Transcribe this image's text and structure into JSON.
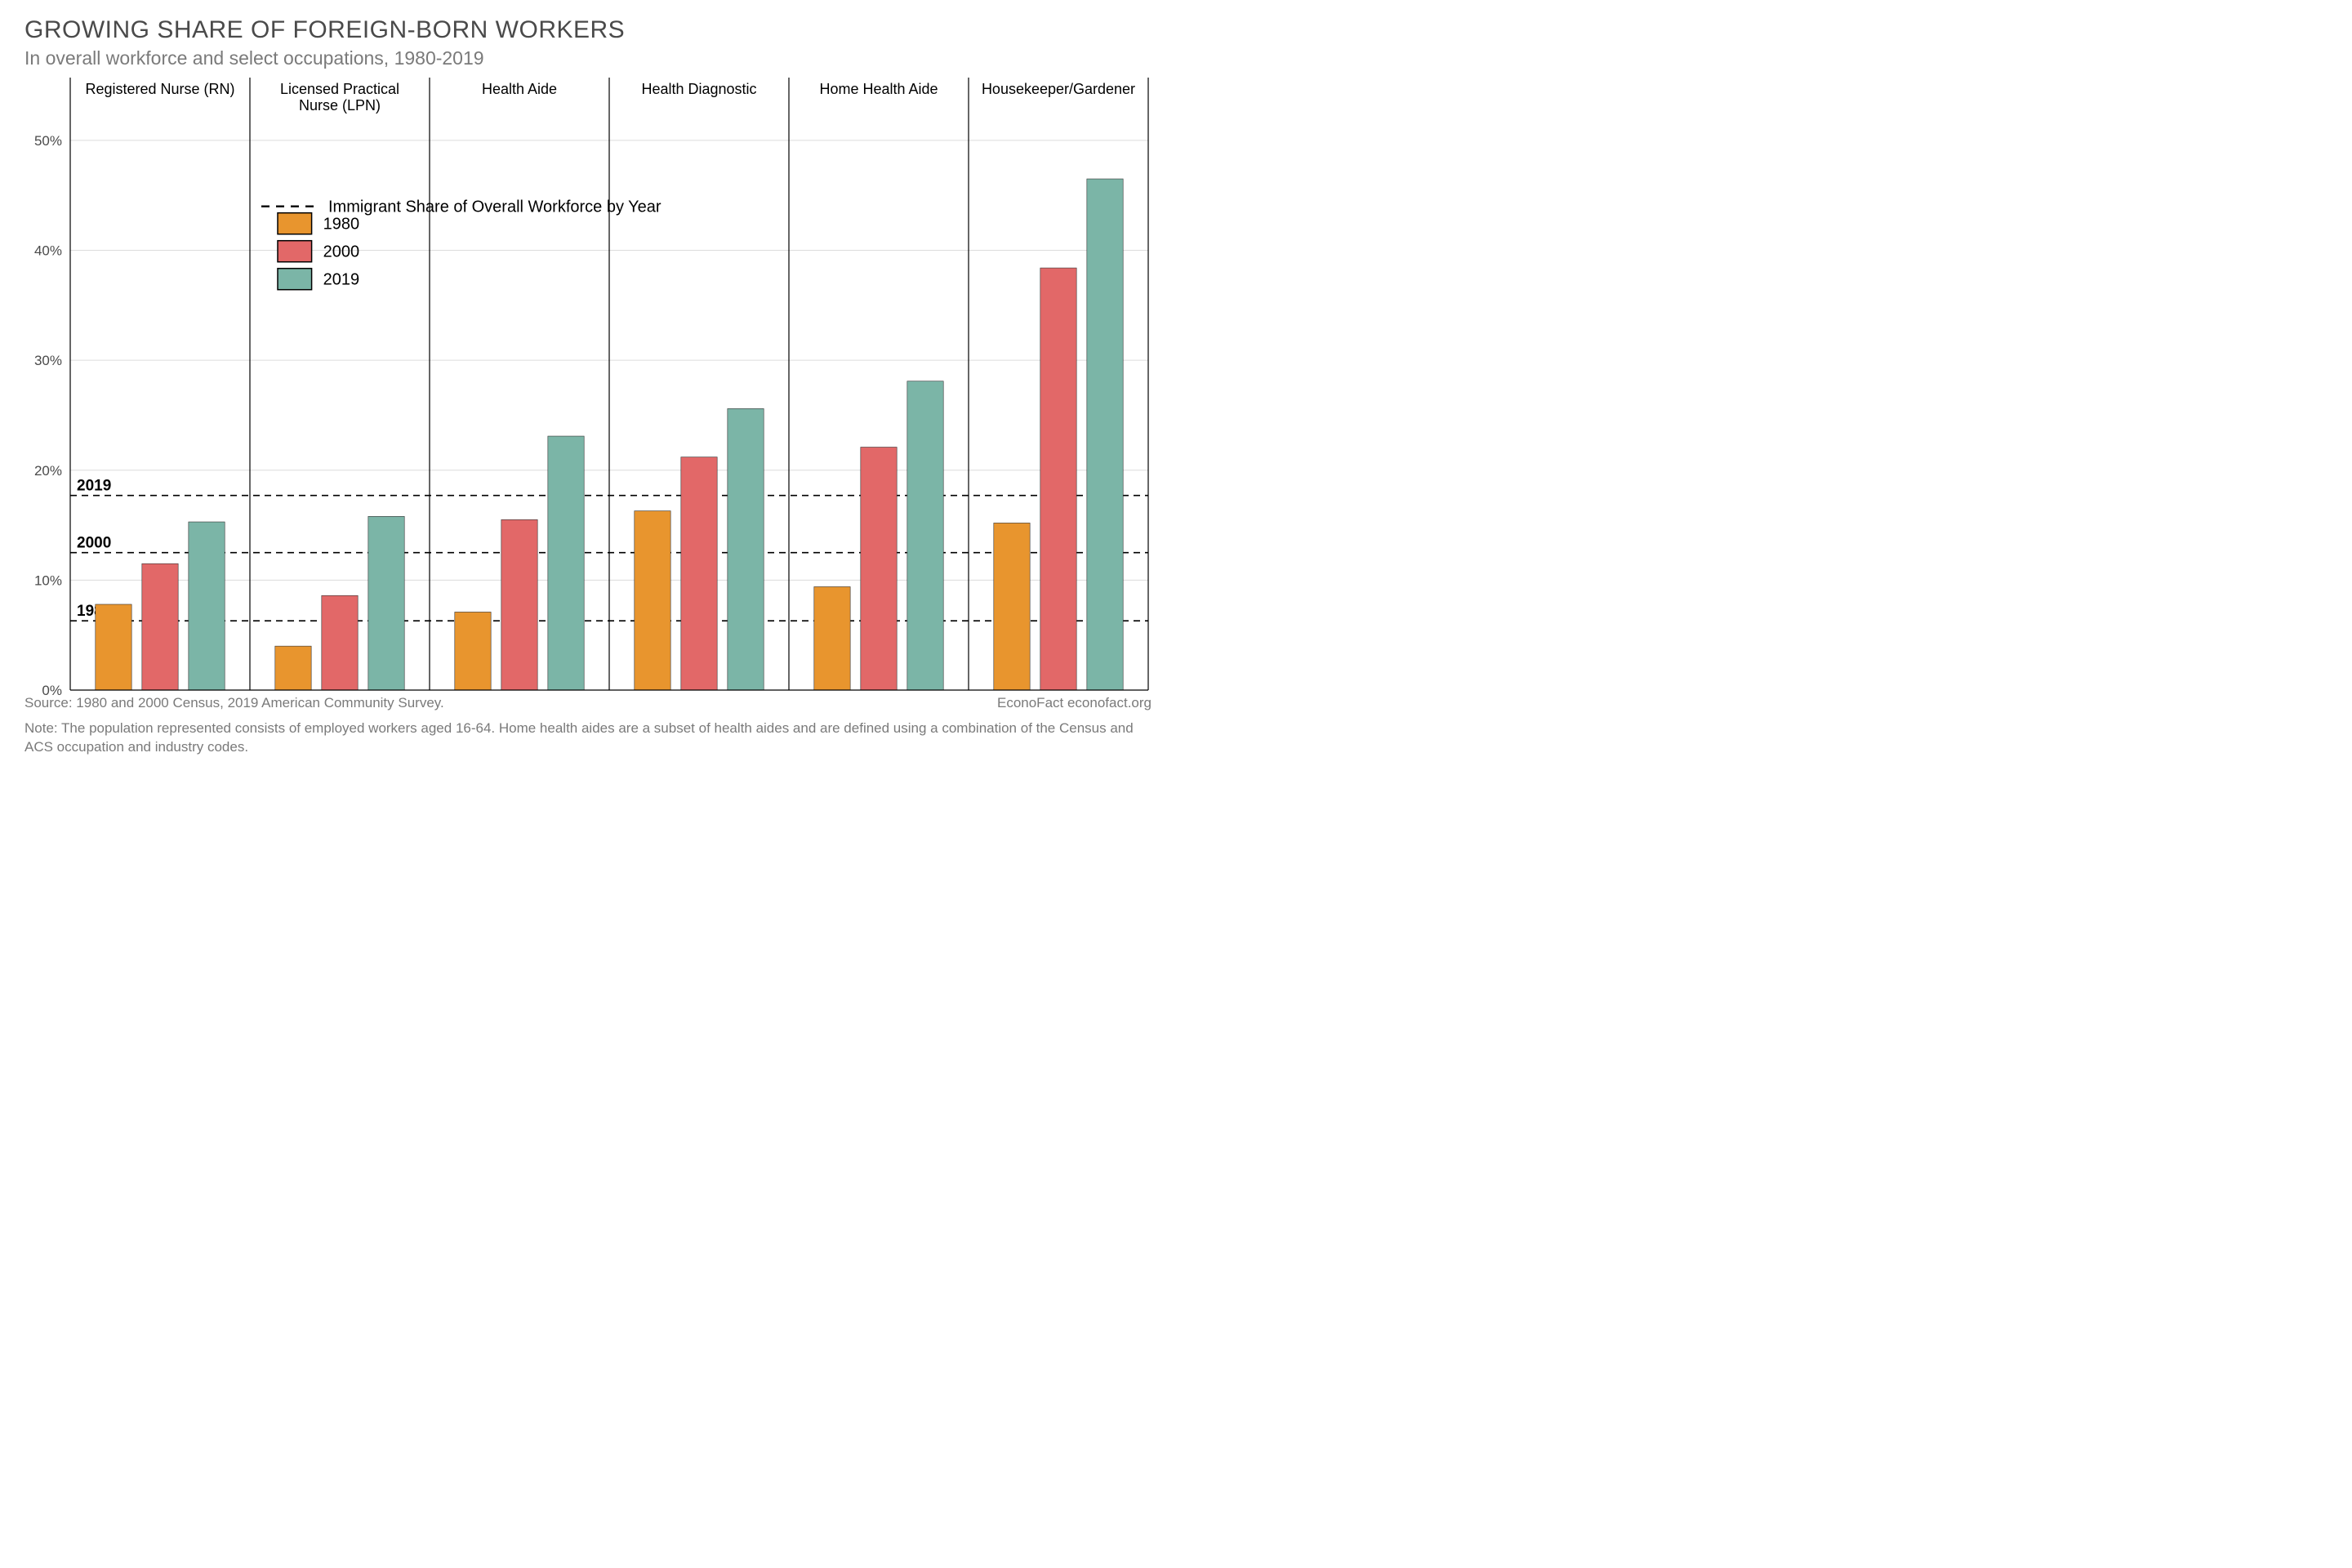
{
  "title": "GROWING SHARE OF FOREIGN-BORN WORKERS",
  "subtitle": "In overall workforce and select occupations, 1980-2019",
  "chart": {
    "type": "grouped-bar-panels",
    "background_color": "#ffffff",
    "plot_bg_color": "#ffffff",
    "grid_color": "#dcdcdc",
    "panel_divider_color": "#000000",
    "axis_color": "#000000",
    "text_color": "#4a4a4a",
    "tick_fontsize": 17,
    "panel_label_fontsize": 18,
    "ylim": [
      0,
      52
    ],
    "ytick_step": 10,
    "ytick_suffix": "%",
    "ymax_tick": 50,
    "bar_gap": 0.08,
    "bar_group_pad": 0.14,
    "years": [
      "1980",
      "2000",
      "2019"
    ],
    "bar_colors": [
      "#e8952e",
      "#e26868",
      "#7bb5a7"
    ],
    "bar_stroke_color": "#333333",
    "bar_stroke_width": 0.6,
    "panels": [
      {
        "label": "Registered Nurse (RN)",
        "values": [
          7.8,
          11.5,
          15.3
        ]
      },
      {
        "label": "Licensed Practical Nurse (LPN)",
        "values": [
          4.0,
          8.6,
          15.8
        ]
      },
      {
        "label": "Health Aide",
        "values": [
          7.1,
          15.5,
          23.1
        ]
      },
      {
        "label": "Health Diagnostic",
        "values": [
          16.3,
          21.2,
          25.6
        ]
      },
      {
        "label": "Home Health Aide",
        "values": [
          9.4,
          22.1,
          28.1
        ]
      },
      {
        "label": "Housekeeper/Gardener",
        "values": [
          15.2,
          38.4,
          46.5
        ]
      }
    ],
    "reference_lines": [
      {
        "label": "1980",
        "value": 6.3
      },
      {
        "label": "2000",
        "value": 12.5
      },
      {
        "label": "2019",
        "value": 17.7
      }
    ],
    "reference_line_color": "#000000",
    "reference_line_dash": "8,6",
    "reference_label_fontsize": 19,
    "legend": {
      "x_panel_index": 1,
      "y_value": 44,
      "dashed_label": "Immigrant Share of Overall Workforce by Year",
      "items": [
        {
          "label": "1980",
          "color": "#e8952e"
        },
        {
          "label": "2000",
          "color": "#e26868"
        },
        {
          "label": "2019",
          "color": "#7bb5a7"
        }
      ],
      "swatch_size": 26,
      "swatch_stroke": "#000000",
      "fontsize": 20,
      "line_gap": 34
    }
  },
  "source": "Source: 1980 and 2000 Census, 2019 American Community Survey.",
  "attribution": "EconoFact econofact.org",
  "note": "Note: The population represented consists of employed workers aged 16-64. Home health aides are a subset of health aides and are defined using a combination of the Census and ACS occupation and industry codes."
}
